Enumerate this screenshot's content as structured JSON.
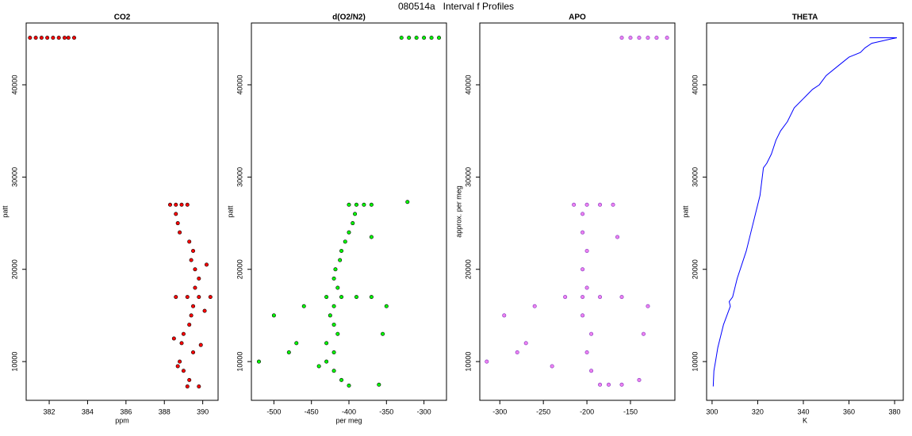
{
  "title": "080514a   Interval f Profiles",
  "chart_data": [
    {
      "type": "scatter",
      "title": "CO2",
      "x_label": "ppm",
      "y_label": "patt",
      "color": "#ff0000",
      "marker_edge_color": "#000000",
      "xlim": [
        380.8,
        390.8
      ],
      "xticks": [
        382,
        384,
        386,
        388,
        390
      ],
      "ylim": [
        5800,
        46700
      ],
      "yticks": [
        10000,
        20000,
        30000,
        40000
      ],
      "x": [
        381.0,
        381.3,
        381.6,
        381.9,
        382.2,
        382.5,
        382.8,
        383.0,
        383.3,
        388.3,
        388.6,
        388.9,
        389.2,
        388.6,
        388.7,
        388.8,
        389.3,
        389.5,
        389.4,
        389.6,
        389.8,
        389.6,
        388.6,
        389.2,
        389.8,
        390.4,
        389.5,
        389.4,
        389.3,
        389.0,
        388.9,
        389.5,
        388.8,
        389.0,
        389.3,
        389.2,
        389.8,
        390.1,
        388.5,
        389.9,
        390.2,
        388.7
      ],
      "y": [
        45100,
        45100,
        45100,
        45100,
        45100,
        45100,
        45100,
        45100,
        45100,
        27000,
        27000,
        27000,
        27000,
        26000,
        25000,
        24000,
        23000,
        22000,
        21000,
        20000,
        19000,
        18000,
        17000,
        17000,
        17000,
        17000,
        16000,
        15000,
        14000,
        13000,
        12000,
        11000,
        10000,
        9000,
        8000,
        7300,
        7300,
        15500,
        12500,
        11800,
        20500,
        9500
      ]
    },
    {
      "type": "scatter",
      "title": "d(O2/N2)",
      "x_label": "per meg",
      "y_label": "patt",
      "color": "#00ff00",
      "marker_edge_color": "#000000",
      "xlim": [
        -530,
        -270
      ],
      "xticks": [
        -500,
        -450,
        -400,
        -350,
        -300
      ],
      "ylim": [
        5800,
        46700
      ],
      "yticks": [
        10000,
        20000,
        30000,
        40000
      ],
      "x": [
        -330,
        -320,
        -310,
        -300,
        -290,
        -280,
        -400,
        -390,
        -380,
        -370,
        -322,
        -392,
        -395,
        -400,
        -405,
        -410,
        -412,
        -418,
        -420,
        -415,
        -430,
        -410,
        -390,
        -370,
        -420,
        -425,
        -420,
        -415,
        -430,
        -420,
        -430,
        -420,
        -410,
        -400,
        -520,
        -500,
        -480,
        -470,
        -440,
        -355,
        -350,
        -370,
        -360,
        -460
      ],
      "y": [
        45100,
        45100,
        45100,
        45100,
        45100,
        45100,
        27000,
        27000,
        27000,
        27000,
        27300,
        26000,
        25000,
        24000,
        23000,
        22000,
        21000,
        20000,
        19000,
        18000,
        17000,
        17000,
        17000,
        17000,
        16000,
        15000,
        14000,
        13000,
        12000,
        11000,
        10000,
        9000,
        8000,
        7400,
        10000,
        15000,
        11000,
        12000,
        9500,
        13000,
        16000,
        23500,
        7500,
        16000
      ]
    },
    {
      "type": "scatter",
      "title": "APO",
      "y_label": "approx. per meg",
      "color": "#ee82ee",
      "marker_edge_color": "#7b2fbf",
      "xlim": [
        -323,
        -99
      ],
      "xticks": [
        -300,
        -250,
        -200,
        -150
      ],
      "ylim": [
        5800,
        46700
      ],
      "yticks": [
        10000,
        20000,
        30000,
        40000
      ],
      "x": [
        -160,
        -150,
        -140,
        -130,
        -120,
        -108,
        -215,
        -200,
        -185,
        -170,
        -205,
        -205,
        -200,
        -205,
        -200,
        -225,
        -205,
        -185,
        -160,
        -205,
        -195,
        -200,
        -195,
        -185,
        -175,
        -315,
        -295,
        -280,
        -270,
        -240,
        -135,
        -130,
        -165,
        -160,
        -260,
        -140
      ],
      "y": [
        45100,
        45100,
        45100,
        45100,
        45100,
        45100,
        27000,
        27000,
        27000,
        27000,
        26000,
        24000,
        22000,
        20000,
        18000,
        17000,
        17000,
        17000,
        17000,
        15000,
        13000,
        11000,
        9000,
        7500,
        7500,
        10000,
        15000,
        11000,
        12000,
        9500,
        13000,
        16000,
        23500,
        7500,
        16000,
        8000
      ]
    },
    {
      "type": "line",
      "title": "THETA",
      "x_label": "K",
      "y_label": "patt",
      "color": "#0000ff",
      "xlim": [
        297.6,
        383.8
      ],
      "xticks": [
        300,
        320,
        340,
        360,
        380
      ],
      "ylim": [
        5800,
        46700
      ],
      "yticks": [
        10000,
        20000,
        30000,
        40000
      ],
      "x": [
        300.5,
        300.8,
        301.5,
        302.5,
        304,
        305,
        306.5,
        308,
        307.5,
        309,
        310,
        311,
        313,
        315,
        317,
        319,
        321,
        322,
        322.5,
        324,
        326,
        328,
        330,
        333,
        336,
        340,
        344,
        347,
        350,
        355,
        360,
        365,
        367,
        370,
        379,
        381,
        369
      ],
      "y": [
        7300,
        9000,
        10000,
        11500,
        13000,
        14000,
        15000,
        16000,
        16500,
        17000,
        18000,
        19000,
        20500,
        22000,
        24000,
        26000,
        28000,
        30000,
        31000,
        31500,
        32500,
        34000,
        35000,
        36000,
        37500,
        38500,
        39500,
        40000,
        41000,
        42000,
        43000,
        43500,
        44000,
        44500,
        45000,
        45100,
        45100
      ]
    }
  ]
}
